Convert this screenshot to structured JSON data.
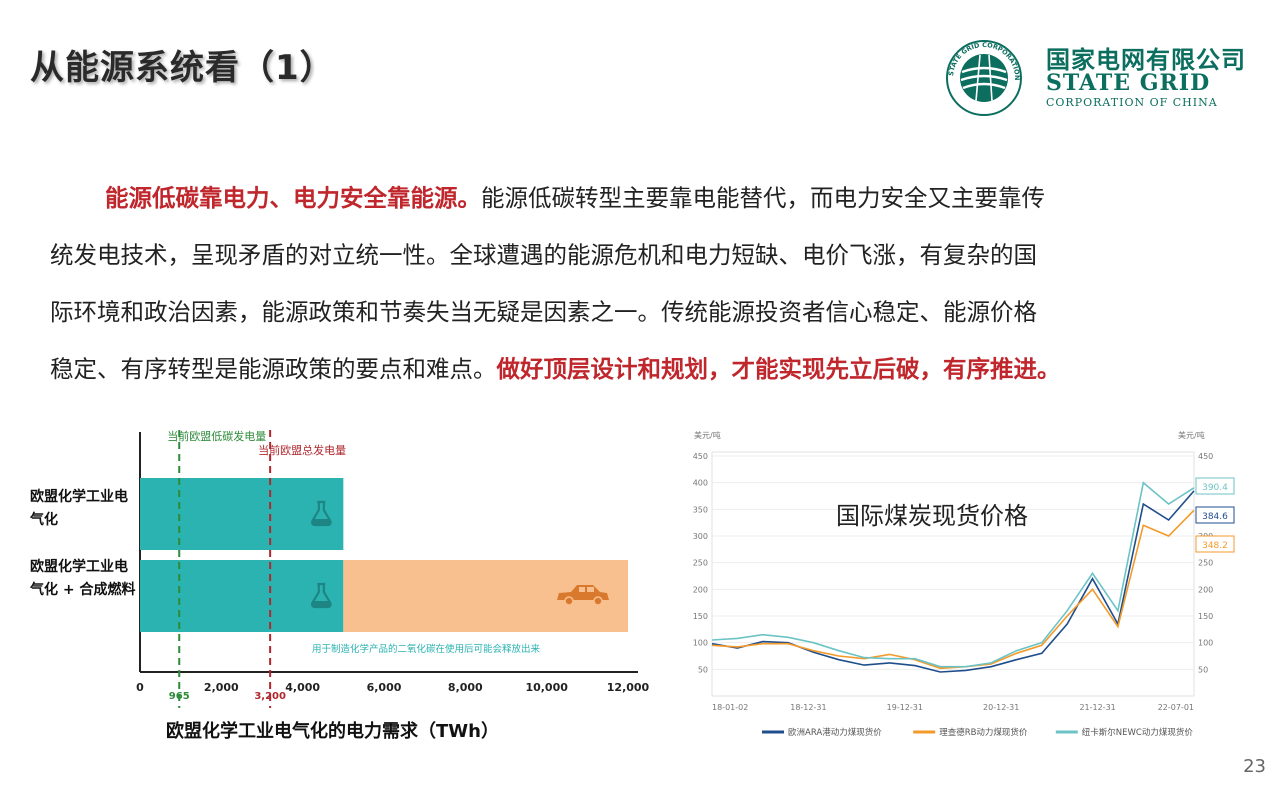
{
  "header": {
    "title": "从能源系统看（1）",
    "logo": {
      "name_cn": "国家电网有限公司",
      "name_en": "STATE GRID",
      "subtitle_en": "CORPORATION OF CHINA",
      "seal_text": "国家电网公司 STATE GRID CORPORATION OF CHINA",
      "color": "#0b6e5e"
    }
  },
  "paragraph": {
    "lines": [
      [
        {
          "text": "能源低碳靠电力、电力安全靠能源。",
          "emphasis": true
        },
        {
          "text": "能源低碳转型主要靠电能替代，而电力安全又主要靠传",
          "emphasis": false
        }
      ],
      [
        {
          "text": "统发电技术，呈现矛盾的对立统一性。全球遭遇的能源危机和电力短缺、电价飞涨，有复杂的国",
          "emphasis": false
        }
      ],
      [
        {
          "text": "际环境和政治因素，能源政策和节奏失当无疑是因素之一。传统能源投资者信心稳定、能源价格",
          "emphasis": false
        }
      ],
      [
        {
          "text": "稳定、有序转型是能源政策的要点和难点。",
          "emphasis": false
        },
        {
          "text": "做好顶层设计和规划，才能实现先立后破，有序推进。",
          "emphasis": true
        }
      ]
    ],
    "emphasis_color": "#c0272d"
  },
  "chart_data": [
    {
      "type": "bar",
      "orientation": "horizontal",
      "stacked": true,
      "categories": [
        "欧盟化学工业电气化",
        "欧盟化学工业电气化 + 合成燃料"
      ],
      "series": [
        {
          "values": [
            5000,
            5000
          ],
          "color": "#2ab3b1",
          "icon": "flask-icon"
        },
        {
          "values": [
            0,
            7000
          ],
          "color": "#f9c08f",
          "icon": "car-icon"
        }
      ],
      "xlabel": "欧盟化学工业电气化的电力需求（TWh）",
      "xlim": [
        0,
        12000
      ],
      "xticks": [
        0,
        2000,
        4000,
        6000,
        8000,
        10000,
        12000
      ],
      "xtick_labels": [
        "0",
        "2,000",
        "4,000",
        "6,000",
        "8,000",
        "10,000",
        "12,000"
      ],
      "reference_lines": [
        {
          "value": 965,
          "label": "当前欧盟低碳发电量",
          "value_label": "965",
          "color": "#2e8b3a"
        },
        {
          "value": 3200,
          "label": "当前欧盟总发电量",
          "value_label": "3,200",
          "color": "#b0282e"
        }
      ],
      "annotation": "用于制造化学产品的二氧化碳在使用后可能会释放出来",
      "annotation_color": "#2ab3b1"
    },
    {
      "type": "line",
      "title": "国际煤炭现货价格",
      "ylabel_left": "美元/吨",
      "ylabel_right": "美元/吨",
      "ylim": [
        0,
        450
      ],
      "yticks": [
        50,
        100,
        150,
        200,
        250,
        300,
        350,
        400,
        450
      ],
      "x_tick_labels": [
        "18-01-02",
        "18-12-31",
        "19-12-31",
        "20-12-31",
        "21-12-31",
        "22-07-01"
      ],
      "x": [
        "18-01",
        "18-04",
        "18-07",
        "18-10",
        "19-01",
        "19-04",
        "19-07",
        "19-10",
        "20-01",
        "20-04",
        "20-07",
        "20-10",
        "21-01",
        "21-04",
        "21-07",
        "21-10",
        "21-12",
        "22-03",
        "22-05",
        "22-07"
      ],
      "series": [
        {
          "name": "欧洲ARA港动力煤现货价",
          "color": "#1f4e8c",
          "values": [
            98,
            90,
            102,
            100,
            82,
            68,
            58,
            62,
            57,
            45,
            48,
            55,
            68,
            80,
            135,
            220,
            135,
            360,
            330,
            384.6
          ]
        },
        {
          "name": "理查德RB动力煤现货价",
          "color": "#f39a2b",
          "values": [
            95,
            92,
            98,
            98,
            85,
            75,
            70,
            78,
            68,
            52,
            55,
            60,
            80,
            95,
            150,
            200,
            130,
            320,
            300,
            348.2
          ]
        },
        {
          "name": "纽卡斯尔NEWC动力煤现货价",
          "color": "#6cc3c5",
          "values": [
            105,
            108,
            115,
            110,
            100,
            85,
            72,
            70,
            70,
            55,
            55,
            62,
            85,
            100,
            160,
            230,
            160,
            400,
            360,
            390.4
          ]
        }
      ],
      "end_labels": [
        "390.4",
        "384.6",
        "348.2"
      ]
    }
  ],
  "page_number": "23"
}
